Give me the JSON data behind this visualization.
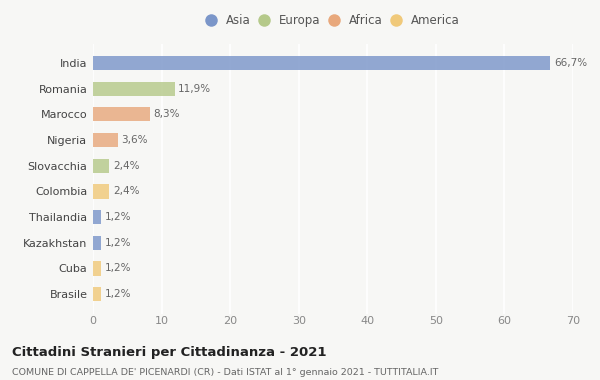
{
  "countries": [
    "India",
    "Romania",
    "Marocco",
    "Nigeria",
    "Slovacchia",
    "Colombia",
    "Thailandia",
    "Kazakhstan",
    "Cuba",
    "Brasile"
  ],
  "values": [
    66.7,
    11.9,
    8.3,
    3.6,
    2.4,
    2.4,
    1.2,
    1.2,
    1.2,
    1.2
  ],
  "labels": [
    "66,7%",
    "11,9%",
    "8,3%",
    "3,6%",
    "2,4%",
    "2,4%",
    "1,2%",
    "1,2%",
    "1,2%",
    "1,2%"
  ],
  "colors": [
    "#7b96c9",
    "#b5c98a",
    "#e8a87c",
    "#e8a87c",
    "#b5c98a",
    "#f0c97a",
    "#7b96c9",
    "#7b96c9",
    "#f0c97a",
    "#f0c97a"
  ],
  "legend_labels": [
    "Asia",
    "Europa",
    "Africa",
    "America"
  ],
  "legend_colors": [
    "#7b96c9",
    "#b5c98a",
    "#e8a87c",
    "#f0c97a"
  ],
  "xlim": [
    0,
    70
  ],
  "xticks": [
    0,
    10,
    20,
    30,
    40,
    50,
    60,
    70
  ],
  "title": "Cittadini Stranieri per Cittadinanza - 2021",
  "subtitle": "COMUNE DI CAPPELLA DE' PICENARDI (CR) - Dati ISTAT al 1° gennaio 2021 - TUTTITALIA.IT",
  "background_color": "#f7f7f5",
  "grid_color": "#ffffff",
  "bar_height": 0.55
}
